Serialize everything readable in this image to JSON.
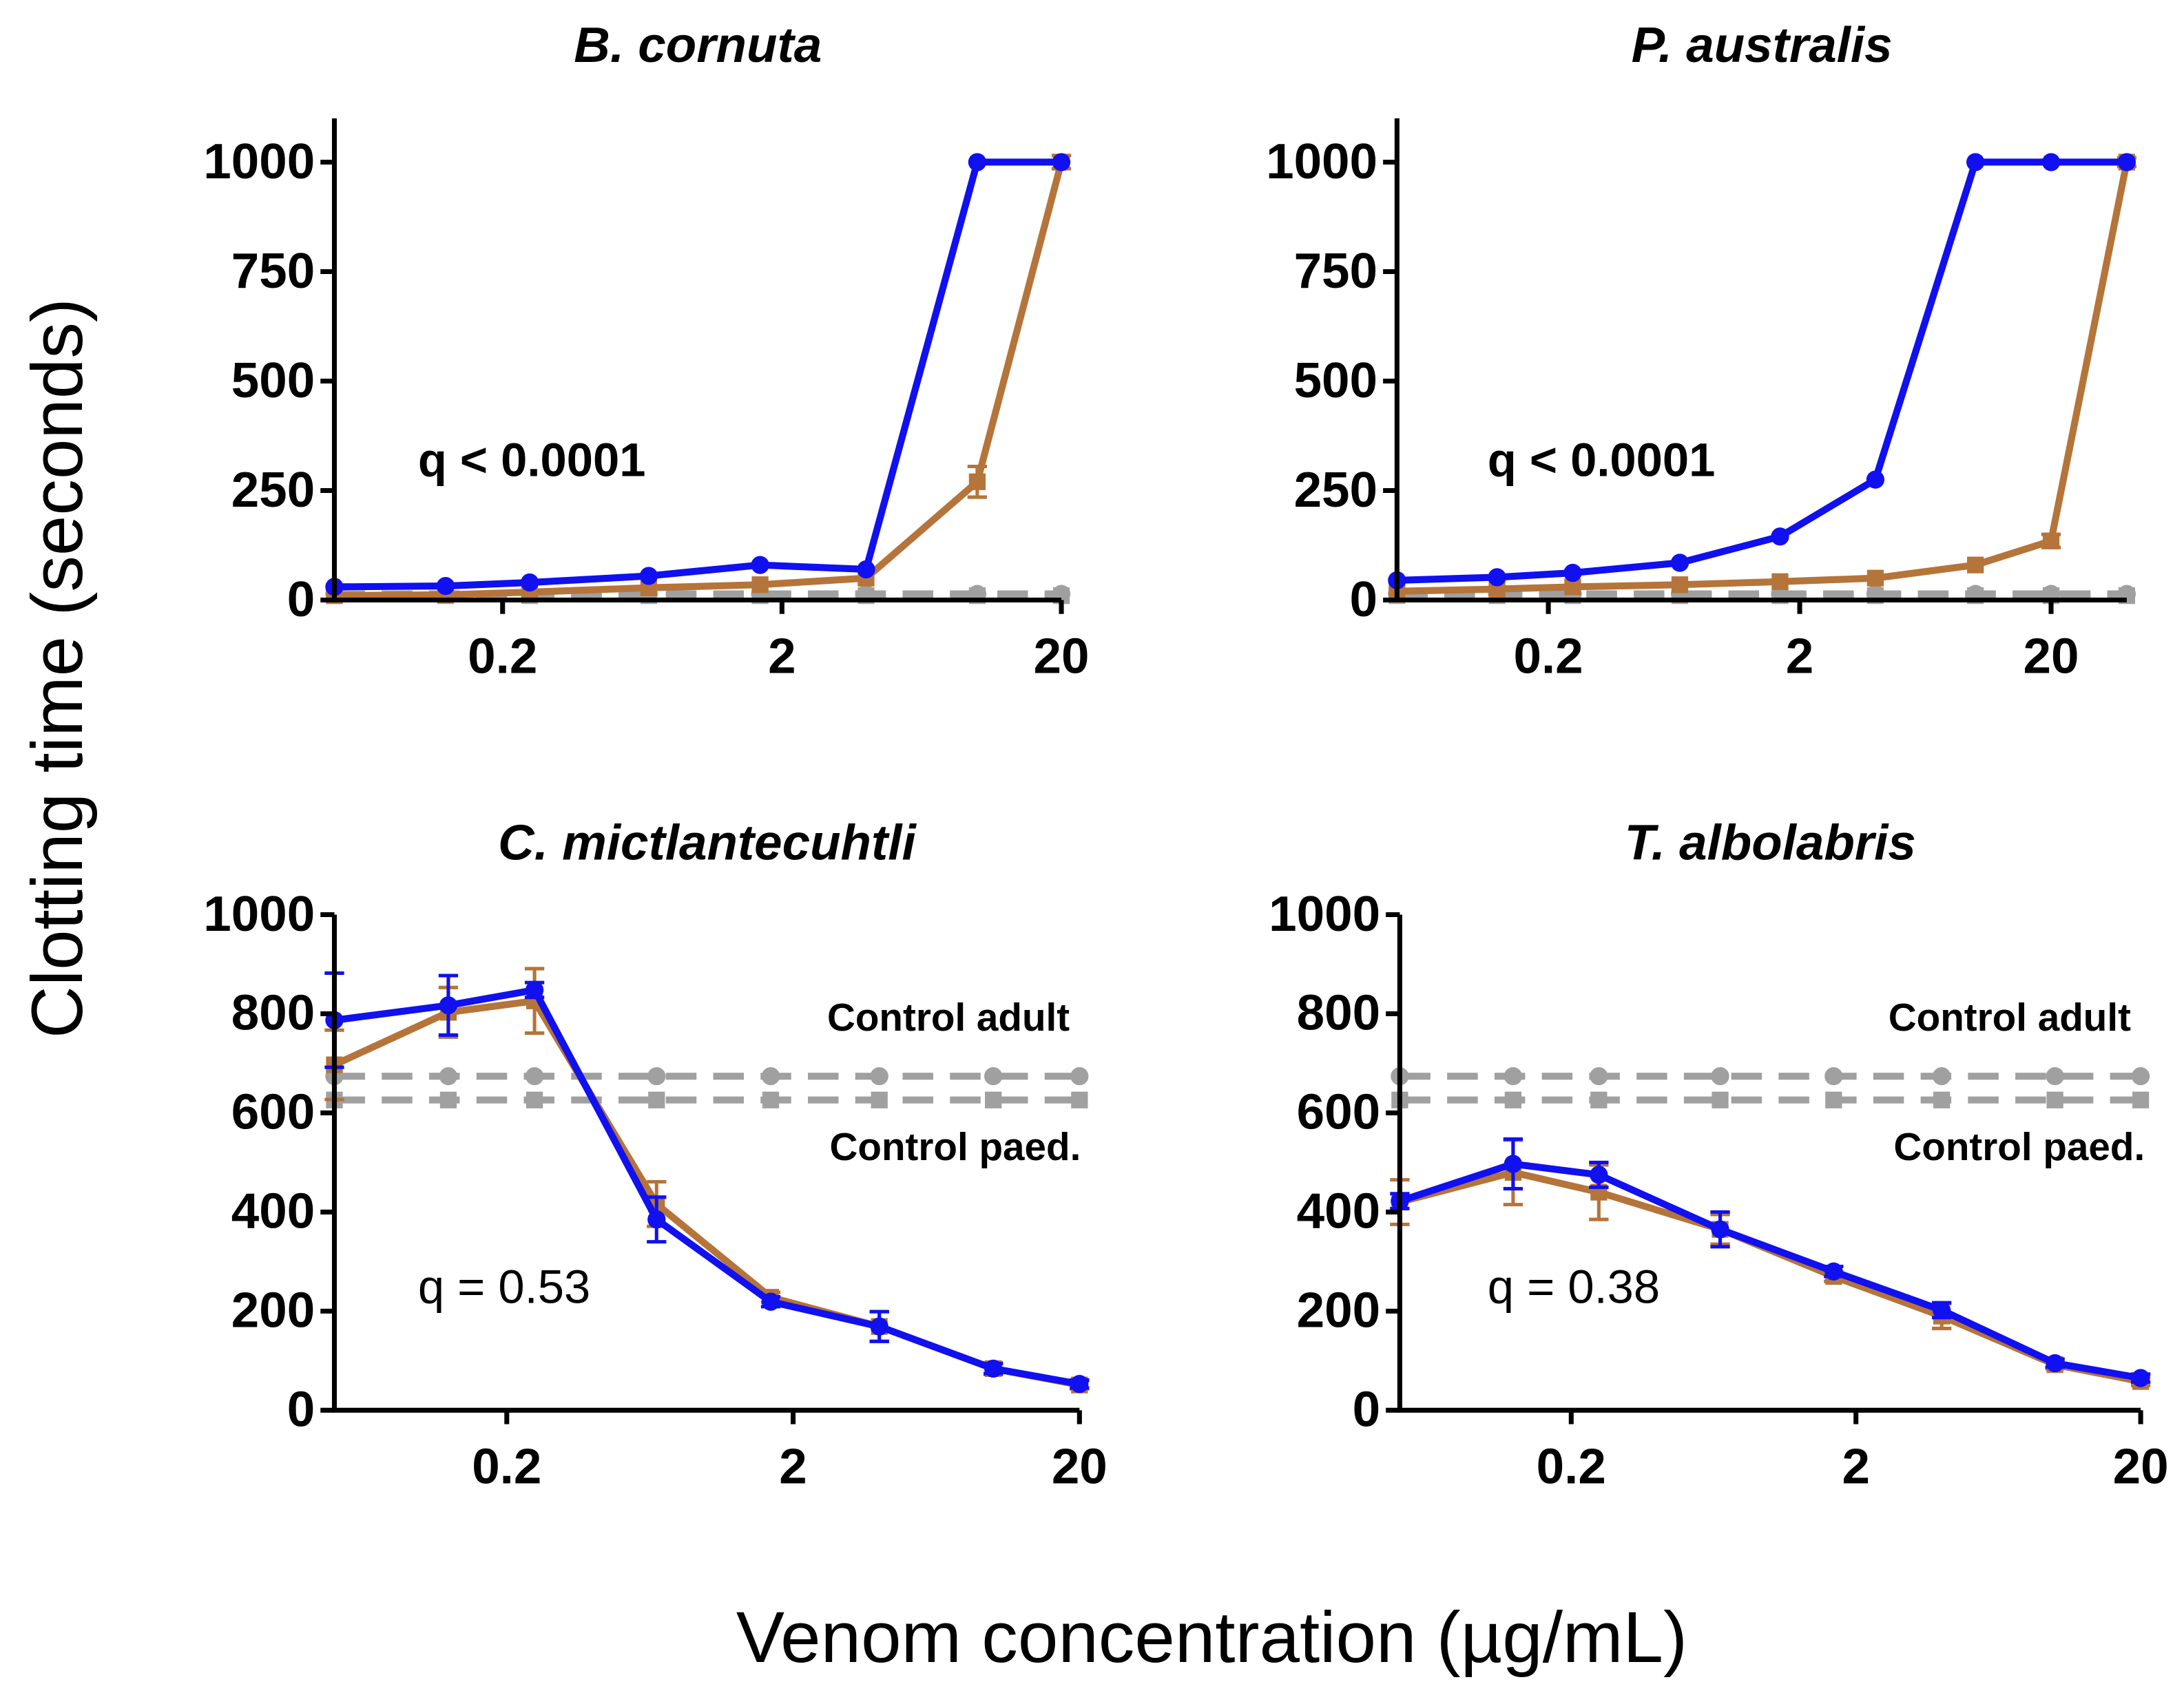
{
  "figure": {
    "ylabel": "Clotting time (seconds)",
    "xlabel": "Venom concentration (µg/mL)"
  },
  "chart_data": [
    {
      "type": "line",
      "title": "B. cornuta",
      "xscale": "log",
      "x": [
        0.05,
        0.125,
        0.25,
        0.667,
        1.67,
        4,
        10,
        20
      ],
      "xlim": [
        0.05,
        20
      ],
      "xticks": [
        0.2,
        2,
        20
      ],
      "ylim": [
        0,
        1100
      ],
      "yticks": [
        0,
        250,
        500,
        750,
        1000
      ],
      "series": [
        {
          "color": "#a0a0a0",
          "marker": "circle",
          "linestyle": "dashed",
          "values": [
            14,
            14,
            14,
            14,
            14,
            14,
            14,
            14
          ],
          "errors": [
            null,
            null,
            null,
            null,
            null,
            null,
            null,
            null
          ]
        },
        {
          "color": "#a0a0a0",
          "marker": "square",
          "linestyle": "dashed",
          "values": [
            10,
            10,
            10,
            10,
            10,
            10,
            10,
            10
          ],
          "errors": [
            null,
            null,
            null,
            null,
            null,
            null,
            null,
            null
          ]
        },
        {
          "color": "#b5743a",
          "marker": "square",
          "linestyle": "solid",
          "values": [
            10,
            12,
            18,
            28,
            35,
            50,
            270,
            1000
          ],
          "errors": [
            null,
            null,
            null,
            null,
            null,
            null,
            35,
            15
          ]
        },
        {
          "color": "#1010f0",
          "marker": "circle",
          "linestyle": "solid",
          "values": [
            30,
            32,
            40,
            55,
            80,
            70,
            1000,
            1000
          ],
          "errors": [
            null,
            null,
            null,
            null,
            null,
            null,
            null,
            null
          ]
        }
      ],
      "annotations": [
        {
          "text": "q < 0.0001",
          "weight": "bold"
        }
      ]
    },
    {
      "type": "line",
      "title": "P. australis",
      "xscale": "log",
      "x": [
        0.05,
        0.125,
        0.25,
        0.667,
        1.67,
        4,
        10,
        20,
        40
      ],
      "xlim": [
        0.05,
        40
      ],
      "xticks": [
        0.2,
        2,
        20
      ],
      "ylim": [
        0,
        1100
      ],
      "yticks": [
        0,
        250,
        500,
        750,
        1000
      ],
      "series": [
        {
          "color": "#a0a0a0",
          "marker": "circle",
          "linestyle": "dashed",
          "values": [
            14,
            14,
            14,
            14,
            14,
            14,
            14,
            14,
            14
          ],
          "errors": [
            null,
            null,
            null,
            null,
            null,
            null,
            null,
            null,
            null
          ]
        },
        {
          "color": "#a0a0a0",
          "marker": "square",
          "linestyle": "dashed",
          "values": [
            10,
            10,
            10,
            10,
            10,
            10,
            10,
            10,
            10
          ],
          "errors": [
            null,
            null,
            null,
            null,
            null,
            null,
            null,
            null,
            null
          ]
        },
        {
          "color": "#b5743a",
          "marker": "square",
          "linestyle": "solid",
          "values": [
            20,
            25,
            30,
            35,
            42,
            50,
            80,
            135,
            1000
          ],
          "errors": [
            null,
            null,
            null,
            null,
            null,
            null,
            null,
            15,
            10
          ]
        },
        {
          "color": "#1010f0",
          "marker": "circle",
          "linestyle": "solid",
          "values": [
            45,
            52,
            62,
            85,
            145,
            275,
            1000,
            1000,
            1000
          ],
          "errors": [
            null,
            null,
            null,
            null,
            null,
            null,
            null,
            null,
            null
          ]
        }
      ],
      "annotations": [
        {
          "text": "q < 0.0001",
          "weight": "bold"
        }
      ]
    },
    {
      "type": "line",
      "title": "C. mictlantecuhtli",
      "xscale": "log",
      "x": [
        0.05,
        0.125,
        0.25,
        0.667,
        1.67,
        4,
        10,
        20
      ],
      "xlim": [
        0.05,
        20
      ],
      "xticks": [
        0.2,
        2,
        20
      ],
      "ylim": [
        0,
        1000
      ],
      "yticks": [
        0,
        200,
        400,
        600,
        800,
        1000
      ],
      "series": [
        {
          "color": "#a0a0a0",
          "marker": "circle",
          "linestyle": "dashed",
          "values": [
            674,
            674,
            674,
            674,
            674,
            674,
            674,
            674
          ],
          "errors": [
            null,
            null,
            null,
            null,
            null,
            null,
            null,
            null
          ]
        },
        {
          "color": "#a0a0a0",
          "marker": "square",
          "linestyle": "dashed",
          "values": [
            626,
            626,
            626,
            626,
            626,
            626,
            626,
            626
          ],
          "errors": [
            null,
            null,
            null,
            null,
            null,
            null,
            null,
            null
          ]
        },
        {
          "color": "#b5743a",
          "marker": "square",
          "linestyle": "solid",
          "values": [
            697,
            803,
            826,
            416,
            228,
            169,
            84,
            51
          ],
          "errors": [
            70,
            50,
            65,
            45,
            10,
            30,
            12,
            8
          ]
        },
        {
          "color": "#1010f0",
          "marker": "circle",
          "linestyle": "solid",
          "values": [
            787,
            817,
            848,
            385,
            219,
            169,
            84,
            53
          ],
          "errors": [
            95,
            60,
            15,
            45,
            10,
            30,
            10,
            8
          ]
        }
      ],
      "annotations": [
        {
          "text": "q = 0.53",
          "weight": "normal"
        },
        {
          "text": "Control adult",
          "weight": "bold"
        },
        {
          "text": "Control paed.",
          "weight": "bold"
        }
      ]
    },
    {
      "type": "line",
      "title": "T. albolabris",
      "xscale": "log",
      "x": [
        0.05,
        0.125,
        0.25,
        0.667,
        1.67,
        4,
        10,
        20
      ],
      "xlim": [
        0.05,
        20
      ],
      "xticks": [
        0.2,
        2,
        20
      ],
      "ylim": [
        0,
        1000
      ],
      "yticks": [
        0,
        200,
        400,
        600,
        800,
        1000
      ],
      "series": [
        {
          "color": "#a0a0a0",
          "marker": "circle",
          "linestyle": "dashed",
          "values": [
            674,
            674,
            674,
            674,
            674,
            674,
            674,
            674
          ],
          "errors": [
            null,
            null,
            null,
            null,
            null,
            null,
            null,
            null
          ]
        },
        {
          "color": "#a0a0a0",
          "marker": "square",
          "linestyle": "dashed",
          "values": [
            626,
            626,
            626,
            626,
            626,
            626,
            626,
            626
          ],
          "errors": [
            null,
            null,
            null,
            null,
            null,
            null,
            null,
            null
          ]
        },
        {
          "color": "#b5743a",
          "marker": "square",
          "linestyle": "solid",
          "values": [
            420,
            480,
            440,
            365,
            270,
            190,
            92,
            58
          ],
          "errors": [
            45,
            65,
            55,
            30,
            10,
            25,
            8,
            8
          ]
        },
        {
          "color": "#1010f0",
          "marker": "circle",
          "linestyle": "solid",
          "values": [
            422,
            497,
            475,
            365,
            280,
            202,
            95,
            65
          ],
          "errors": [
            15,
            50,
            25,
            35,
            10,
            15,
            8,
            8
          ]
        }
      ],
      "annotations": [
        {
          "text": "q = 0.38",
          "weight": "normal"
        },
        {
          "text": "Control adult",
          "weight": "bold"
        },
        {
          "text": "Control paed.",
          "weight": "bold"
        }
      ]
    }
  ]
}
